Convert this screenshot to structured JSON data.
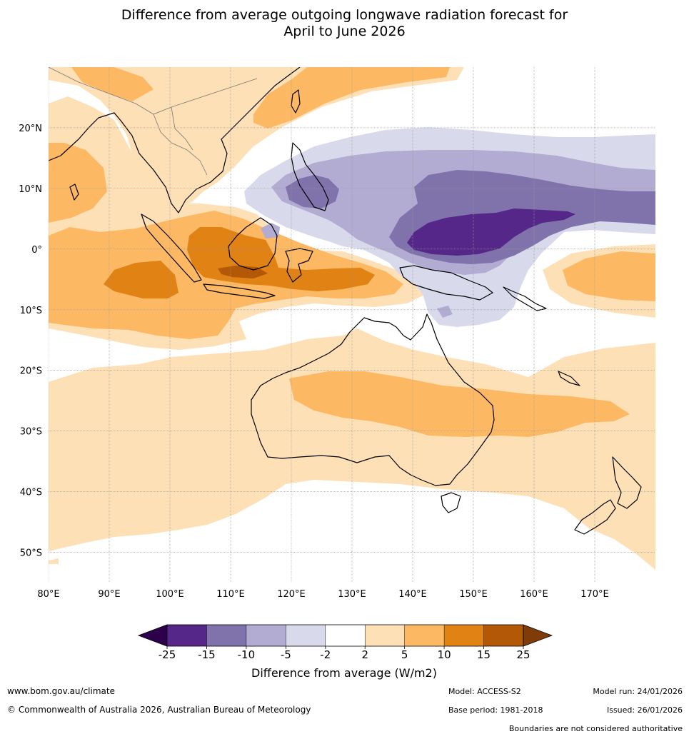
{
  "title": {
    "line1": "Difference from average outgoing longwave radiation forecast for",
    "line2": "April to June 2026"
  },
  "map": {
    "extent": {
      "lon_min": 80,
      "lon_max": 180,
      "lat_min": -55,
      "lat_max": 30
    },
    "lat_labels": [
      {
        "lat": 20,
        "label": "20°N"
      },
      {
        "lat": 10,
        "label": "10°N"
      },
      {
        "lat": 0,
        "label": "0°"
      },
      {
        "lat": -10,
        "label": "10°S"
      },
      {
        "lat": -20,
        "label": "20°S"
      },
      {
        "lat": -30,
        "label": "30°S"
      },
      {
        "lat": -40,
        "label": "40°S"
      },
      {
        "lat": -50,
        "label": "50°S"
      }
    ],
    "lon_labels": [
      {
        "lon": 80,
        "label": "80°E"
      },
      {
        "lon": 90,
        "label": "90°E"
      },
      {
        "lon": 100,
        "label": "100°E"
      },
      {
        "lon": 110,
        "label": "110°E"
      },
      {
        "lon": 120,
        "label": "120°E"
      },
      {
        "lon": 130,
        "label": "130°E"
      },
      {
        "lon": 140,
        "label": "140°E"
      },
      {
        "lon": 150,
        "label": "150°E"
      },
      {
        "lon": 160,
        "label": "160°E"
      },
      {
        "lon": 170,
        "label": "170°E"
      }
    ],
    "colors": {
      "ocean": "#ffffff",
      "grid": "#999999",
      "coast": "#000000",
      "border": "#777777"
    }
  },
  "colorbar": {
    "ticks": [
      "-25",
      "-15",
      "-10",
      "-5",
      "-2",
      "2",
      "5",
      "10",
      "15",
      "25"
    ],
    "bins": [
      {
        "range": "< -25",
        "color": "#2d004b"
      },
      {
        "range": "-25 to -15",
        "color": "#542788"
      },
      {
        "range": "-15 to -10",
        "color": "#8073ac"
      },
      {
        "range": "-10 to -5",
        "color": "#b2abd2"
      },
      {
        "range": "-5 to -2",
        "color": "#d8daeb"
      },
      {
        "range": "-2 to 2",
        "color": "#ffffff"
      },
      {
        "range": "2 to 5",
        "color": "#fee0b6"
      },
      {
        "range": "5 to 10",
        "color": "#fdb863"
      },
      {
        "range": "10 to 15",
        "color": "#e08214"
      },
      {
        "range": "15 to 25",
        "color": "#b35806"
      },
      {
        "range": "> 25",
        "color": "#7f3b08"
      }
    ],
    "label": "Difference from average (W/m2)"
  },
  "footer": {
    "url": "www.bom.gov.au/climate",
    "copyright": "© Commonwealth of Australia 2026, Australian Bureau of Meteorology",
    "model": "Model: ACCESS-S2",
    "base_period": "Base period: 1981-2018",
    "model_run": "Model run: 24/01/2026",
    "issued": "Issued: 26/01/2026",
    "disclaimer": "Boundaries are not considered authoritative"
  }
}
